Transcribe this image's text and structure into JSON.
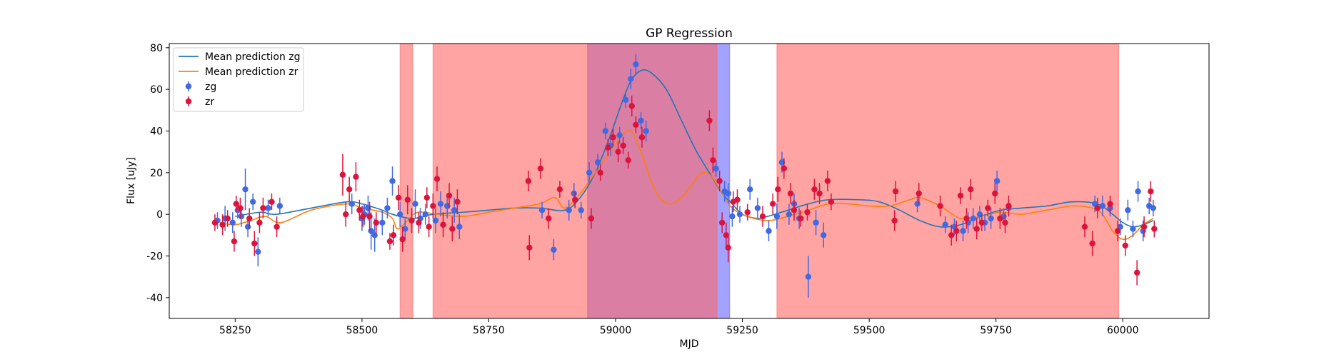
{
  "chart_data": {
    "type": "scatter",
    "title": "GP Regression",
    "xlabel": "MJD",
    "ylabel": "Flux [uJy]",
    "xlim": [
      58120,
      60170
    ],
    "ylim": [
      -50,
      82
    ],
    "x_ticks": [
      58250,
      58500,
      58750,
      59000,
      59250,
      59500,
      59750,
      60000
    ],
    "y_ticks": [
      -40,
      -20,
      0,
      20,
      40,
      60,
      80
    ],
    "grid": false,
    "legend_position": "upper-left",
    "colors": {
      "zg_points": "#4169e1",
      "zr_points": "#dc143c",
      "zg_line": "#1f77b4",
      "zr_line": "#ff7f0e",
      "zr_band": "#ff6666",
      "zg_band": "#6666ff"
    },
    "legend": [
      {
        "label": "Mean prediction zg",
        "kind": "line",
        "series": "zg_mean"
      },
      {
        "label": "Mean prediction zr",
        "kind": "line",
        "series": "zr_mean"
      },
      {
        "label": "zg",
        "kind": "errorbar",
        "series": "zg"
      },
      {
        "label": "zr",
        "kind": "errorbar",
        "series": "zr"
      }
    ],
    "shaded_regions": [
      {
        "band": "zr",
        "x0": 58575,
        "x1": 58600
      },
      {
        "band": "zr",
        "x0": 58640,
        "x1": 58945
      },
      {
        "band": "zg",
        "x0": 58945,
        "x1": 59225
      },
      {
        "band": "zr",
        "x0": 58945,
        "x1": 59200
      },
      {
        "band": "zr",
        "x0": 59318,
        "x1": 59992
      }
    ],
    "series": [
      {
        "name": "Mean prediction zg",
        "id": "zg_mean",
        "type": "line",
        "x": [
          58250,
          58300,
          58330,
          58400,
          58470,
          58500,
          58540,
          58560,
          58600,
          58640,
          58700,
          58750,
          58800,
          58850,
          58900,
          58930,
          58960,
          58990,
          59010,
          59030,
          59050,
          59070,
          59100,
          59130,
          59160,
          59190,
          59210,
          59230,
          59250,
          59280,
          59300,
          59340,
          59380,
          59420,
          59480,
          59520,
          59560,
          59600,
          59640,
          59680,
          59720,
          59760,
          59800,
          59850,
          59900,
          59950,
          59980,
          60000,
          60020,
          60040,
          60060
        ],
        "y": [
          -1,
          1,
          0,
          3,
          6,
          5,
          2,
          0,
          -2,
          0,
          1,
          2,
          3,
          3,
          2,
          8,
          20,
          38,
          52,
          64,
          69,
          68,
          60,
          45,
          30,
          18,
          10,
          5,
          0,
          -2,
          -1,
          2,
          5,
          7,
          7,
          6,
          2,
          -3,
          -6,
          -5,
          -1,
          2,
          3,
          4,
          6,
          5,
          0,
          -4,
          -6,
          -5,
          -3
        ]
      },
      {
        "name": "Mean prediction zr",
        "id": "zr_mean",
        "type": "line",
        "x": [
          58220,
          58250,
          58280,
          58310,
          58340,
          58400,
          58470,
          58500,
          58540,
          58560,
          58570,
          58590,
          58610,
          58650,
          58700,
          58750,
          58800,
          58850,
          58880,
          58900,
          58930,
          58960,
          58990,
          59010,
          59030,
          59050,
          59070,
          59090,
          59110,
          59130,
          59150,
          59170,
          59190,
          59210,
          59230,
          59260,
          59300,
          59340,
          59380,
          59420,
          59460,
          59500,
          59540,
          59580,
          59600,
          59640,
          59680,
          59720,
          59760,
          59800,
          59850,
          59900,
          59940,
          59960,
          59980,
          60000,
          60020,
          60040,
          60060
        ],
        "y": [
          -4,
          -5,
          -3,
          -1,
          -4,
          2,
          5,
          3,
          1,
          -2,
          -7,
          -3,
          1,
          0,
          -1,
          1,
          3,
          5,
          8,
          3,
          10,
          20,
          30,
          37,
          40,
          30,
          16,
          7,
          5,
          8,
          14,
          20,
          18,
          10,
          3,
          -1,
          -3,
          -1,
          2,
          5,
          5,
          4,
          4,
          7,
          8,
          4,
          -2,
          -1,
          1,
          0,
          2,
          4,
          3,
          0,
          -8,
          -12,
          -10,
          -5,
          -2
        ]
      },
      {
        "name": "zg",
        "id": "zg",
        "type": "errorbar",
        "points": [
          [
            58215,
            -3,
            4
          ],
          [
            58230,
            -2,
            6
          ],
          [
            58245,
            -4,
            5
          ],
          [
            58255,
            2,
            4
          ],
          [
            58262,
            -1,
            5
          ],
          [
            58270,
            12,
            10
          ],
          [
            58275,
            -6,
            5
          ],
          [
            58285,
            6,
            4
          ],
          [
            58295,
            -18,
            7
          ],
          [
            58315,
            3,
            4
          ],
          [
            58338,
            4,
            4
          ],
          [
            58480,
            5,
            5
          ],
          [
            58500,
            -2,
            6
          ],
          [
            58505,
            0,
            5
          ],
          [
            58512,
            3,
            6
          ],
          [
            58518,
            -8,
            9
          ],
          [
            58525,
            -10,
            8
          ],
          [
            58540,
            -4,
            6
          ],
          [
            58550,
            3,
            5
          ],
          [
            58560,
            16,
            7
          ],
          [
            58575,
            0,
            6
          ],
          [
            58585,
            -7,
            5
          ],
          [
            58605,
            5,
            7
          ],
          [
            58615,
            -2,
            5
          ],
          [
            58625,
            0,
            5
          ],
          [
            58645,
            -3,
            6
          ],
          [
            58655,
            5,
            6
          ],
          [
            58668,
            4,
            6
          ],
          [
            58682,
            2,
            6
          ],
          [
            58692,
            -6,
            6
          ],
          [
            58855,
            2,
            4
          ],
          [
            58878,
            -17,
            5
          ],
          [
            58908,
            2,
            5
          ],
          [
            58918,
            10,
            5
          ],
          [
            58932,
            2,
            4
          ],
          [
            58948,
            20,
            5
          ],
          [
            58965,
            25,
            4
          ],
          [
            58980,
            40,
            4
          ],
          [
            58990,
            33,
            5
          ],
          [
            59008,
            38,
            4
          ],
          [
            59020,
            55,
            4
          ],
          [
            59030,
            65,
            5
          ],
          [
            59040,
            72,
            5
          ],
          [
            59050,
            45,
            4
          ],
          [
            59060,
            40,
            5
          ],
          [
            59198,
            22,
            4
          ],
          [
            59215,
            11,
            5
          ],
          [
            59222,
            10,
            5
          ],
          [
            59230,
            -1,
            5
          ],
          [
            59245,
            0,
            4
          ],
          [
            59265,
            12,
            5
          ],
          [
            59280,
            3,
            5
          ],
          [
            59302,
            -8,
            5
          ],
          [
            59318,
            -1,
            6
          ],
          [
            59328,
            25,
            5
          ],
          [
            59342,
            0,
            5
          ],
          [
            59352,
            5,
            5
          ],
          [
            59362,
            -2,
            5
          ],
          [
            59380,
            -30,
            10
          ],
          [
            59395,
            -4,
            6
          ],
          [
            59410,
            -10,
            6
          ],
          [
            59595,
            5,
            4
          ],
          [
            59650,
            -5,
            4
          ],
          [
            59668,
            -6,
            4
          ],
          [
            59685,
            -8,
            5
          ],
          [
            59695,
            -4,
            5
          ],
          [
            59705,
            -2,
            5
          ],
          [
            59718,
            0,
            4
          ],
          [
            59728,
            -4,
            4
          ],
          [
            59740,
            -2,
            5
          ],
          [
            59752,
            16,
            5
          ],
          [
            59765,
            -1,
            4
          ],
          [
            59775,
            3,
            4
          ],
          [
            59945,
            5,
            4
          ],
          [
            59960,
            4,
            5
          ],
          [
            59975,
            3,
            4
          ],
          [
            59995,
            -6,
            4
          ],
          [
            60010,
            2,
            5
          ],
          [
            60020,
            -7,
            4
          ],
          [
            60030,
            11,
            5
          ],
          [
            60040,
            -8,
            5
          ],
          [
            60052,
            4,
            4
          ],
          [
            60060,
            3,
            4
          ]
        ]
      },
      {
        "name": "zr",
        "id": "zr",
        "type": "errorbar",
        "points": [
          [
            58210,
            -4,
            4
          ],
          [
            58225,
            -5,
            5
          ],
          [
            58235,
            -2,
            4
          ],
          [
            58248,
            -13,
            5
          ],
          [
            58252,
            5,
            4
          ],
          [
            58260,
            3,
            5
          ],
          [
            58278,
            -2,
            5
          ],
          [
            58288,
            -14,
            6
          ],
          [
            58298,
            -4,
            5
          ],
          [
            58305,
            3,
            5
          ],
          [
            58322,
            6,
            4
          ],
          [
            58332,
            -6,
            5
          ],
          [
            58462,
            19,
            10
          ],
          [
            58468,
            0,
            6
          ],
          [
            58475,
            12,
            6
          ],
          [
            58488,
            18,
            7
          ],
          [
            58495,
            2,
            5
          ],
          [
            58502,
            -1,
            5
          ],
          [
            58515,
            -1,
            7
          ],
          [
            58528,
            -4,
            5
          ],
          [
            58555,
            -13,
            4
          ],
          [
            58562,
            -10,
            5
          ],
          [
            58572,
            8,
            6
          ],
          [
            58580,
            -12,
            6
          ],
          [
            58590,
            7,
            7
          ],
          [
            58598,
            -3,
            6
          ],
          [
            58612,
            -4,
            5
          ],
          [
            58628,
            8,
            5
          ],
          [
            58632,
            -6,
            5
          ],
          [
            58640,
            4,
            6
          ],
          [
            58648,
            17,
            6
          ],
          [
            58660,
            -5,
            6
          ],
          [
            58672,
            9,
            6
          ],
          [
            58678,
            -7,
            6
          ],
          [
            58688,
            6,
            6
          ],
          [
            58828,
            16,
            5
          ],
          [
            58830,
            -16,
            6
          ],
          [
            58852,
            22,
            5
          ],
          [
            58868,
            -2,
            5
          ],
          [
            58890,
            12,
            4
          ],
          [
            58920,
            7,
            4
          ],
          [
            58952,
            -2,
            5
          ],
          [
            58970,
            20,
            4
          ],
          [
            58985,
            32,
            4
          ],
          [
            58995,
            37,
            4
          ],
          [
            59005,
            30,
            5
          ],
          [
            59015,
            33,
            4
          ],
          [
            59025,
            26,
            4
          ],
          [
            59032,
            52,
            5
          ],
          [
            59040,
            43,
            4
          ],
          [
            59052,
            37,
            5
          ],
          [
            59185,
            45,
            5
          ],
          [
            59192,
            26,
            6
          ],
          [
            59205,
            16,
            5
          ],
          [
            59210,
            -4,
            5
          ],
          [
            59218,
            -10,
            6
          ],
          [
            59222,
            -16,
            7
          ],
          [
            59232,
            6,
            5
          ],
          [
            59240,
            7,
            5
          ],
          [
            59260,
            1,
            4
          ],
          [
            59290,
            -1,
            5
          ],
          [
            59310,
            5,
            5
          ],
          [
            59320,
            12,
            6
          ],
          [
            59332,
            22,
            5
          ],
          [
            59345,
            10,
            5
          ],
          [
            59352,
            2,
            5
          ],
          [
            59365,
            -2,
            4
          ],
          [
            59378,
            1,
            4
          ],
          [
            59392,
            12,
            5
          ],
          [
            59402,
            10,
            5
          ],
          [
            59418,
            16,
            5
          ],
          [
            59425,
            6,
            4
          ],
          [
            59550,
            -3,
            5
          ],
          [
            59552,
            11,
            5
          ],
          [
            59598,
            10,
            5
          ],
          [
            59640,
            4,
            5
          ],
          [
            59662,
            -10,
            5
          ],
          [
            59672,
            -8,
            5
          ],
          [
            59680,
            9,
            4
          ],
          [
            59692,
            -2,
            5
          ],
          [
            59700,
            12,
            5
          ],
          [
            59712,
            -7,
            5
          ],
          [
            59722,
            -4,
            4
          ],
          [
            59734,
            3,
            4
          ],
          [
            59748,
            10,
            5
          ],
          [
            59758,
            -2,
            5
          ],
          [
            59768,
            -4,
            5
          ],
          [
            59775,
            4,
            5
          ],
          [
            59925,
            -6,
            5
          ],
          [
            59940,
            -14,
            6
          ],
          [
            59950,
            3,
            5
          ],
          [
            59975,
            5,
            4
          ],
          [
            59990,
            -8,
            5
          ],
          [
            60005,
            -15,
            5
          ],
          [
            60028,
            -28,
            6
          ],
          [
            60042,
            -6,
            5
          ],
          [
            60055,
            11,
            5
          ],
          [
            60062,
            -7,
            4
          ]
        ]
      }
    ]
  }
}
